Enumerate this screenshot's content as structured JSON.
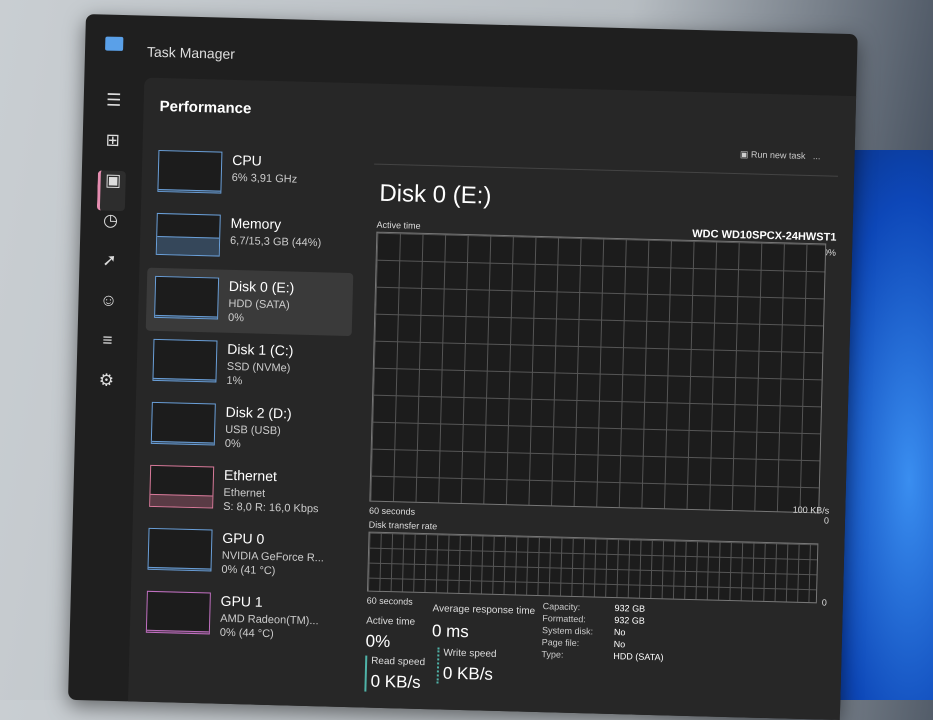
{
  "app": {
    "title": "Task Manager"
  },
  "window_controls": [
    "–",
    "▢",
    "✕"
  ],
  "nav_icons": [
    "hamburger-icon",
    "processes-icon",
    "performance-icon",
    "app-history-icon",
    "startup-icon",
    "users-icon",
    "details-icon",
    "services-icon"
  ],
  "panel": {
    "title": "Performance"
  },
  "devices": [
    {
      "name": "CPU",
      "sub1": "6% 3,91 GHz",
      "sub2": "",
      "color": "#6a9fd8"
    },
    {
      "name": "Memory",
      "sub1": "6,7/15,3 GB (44%)",
      "sub2": "",
      "color": "#6a9fd8"
    },
    {
      "name": "Disk 0 (E:)",
      "sub1": "HDD (SATA)",
      "sub2": "0%",
      "color": "#6a9fd8"
    },
    {
      "name": "Disk 1 (C:)",
      "sub1": "SSD (NVMe)",
      "sub2": "1%",
      "color": "#6a9fd8"
    },
    {
      "name": "Disk 2 (D:)",
      "sub1": "USB (USB)",
      "sub2": "0%",
      "color": "#6a9fd8"
    },
    {
      "name": "Ethernet",
      "sub1": "Ethernet",
      "sub2": "S: 8,0 R: 16,0 Kbps",
      "color": "#d87a9a"
    },
    {
      "name": "GPU 0",
      "sub1": "NVIDIA GeForce R...",
      "sub2": "0% (41 °C)",
      "color": "#6a9fd8"
    },
    {
      "name": "GPU 1",
      "sub1": "AMD Radeon(TM)...",
      "sub2": "0% (44 °C)",
      "color": "#c070c0"
    }
  ],
  "toolbar": {
    "run_new_task": "Run new task",
    "more": "..."
  },
  "detail": {
    "title": "Disk 0 (E:)",
    "model": "WDC WD10SPCX-24HWST1",
    "active_time_label": "Active time",
    "max1": "100%",
    "min1": "0",
    "seconds1": "60 seconds",
    "transfer_label": "Disk transfer rate",
    "max2": "100 KB/s",
    "min2": "0",
    "seconds2": "60 seconds",
    "active_time": "Active time",
    "active_time_value": "0%",
    "avg_response": "Average response time",
    "avg_response_value": "0 ms",
    "read_speed": "Read speed",
    "read_speed_value": "0 KB/s",
    "write_speed": "Write speed",
    "write_speed_value": "0 KB/s",
    "props": [
      [
        "Capacity:",
        "932 GB"
      ],
      [
        "Formatted:",
        "932 GB"
      ],
      [
        "System disk:",
        "No"
      ],
      [
        "Page file:",
        "No"
      ],
      [
        "Type:",
        "HDD (SATA)"
      ]
    ]
  }
}
